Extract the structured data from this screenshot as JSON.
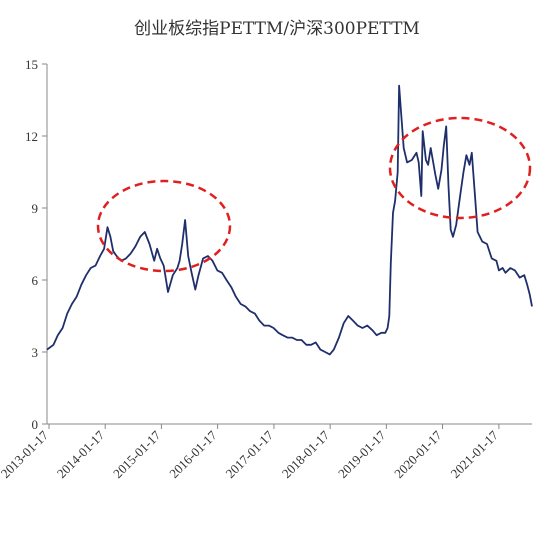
{
  "chart_data": {
    "type": "line",
    "title": "创业板综指PETTM/沪深300PETTM",
    "xlabel": "",
    "ylabel": "",
    "ylim": [
      0,
      15
    ],
    "yticks": [
      0,
      3,
      6,
      9,
      12,
      15
    ],
    "xlim": [
      "2013-01-04",
      "2021-08-20"
    ],
    "xticks": [
      "2013-01-17",
      "2014-01-17",
      "2015-01-17",
      "2016-01-17",
      "2017-01-17",
      "2018-01-17",
      "2019-01-17",
      "2020-01-17",
      "2021-01-17"
    ],
    "grid": false,
    "legend": "none",
    "series_color": "#1f2f6b",
    "annotation_color": "#e02020",
    "series": [
      {
        "x": [
          "2013-01-04",
          "2013-02-15",
          "2013-03-15",
          "2013-04-15",
          "2013-05-15",
          "2013-06-15",
          "2013-07-15",
          "2013-08-15",
          "2013-09-15",
          "2013-10-15",
          "2013-11-15",
          "2013-12-15",
          "2014-01-10",
          "2014-02-01",
          "2014-02-20",
          "2014-03-10",
          "2014-04-01",
          "2014-05-01",
          "2014-06-01",
          "2014-07-01",
          "2014-08-01",
          "2014-09-01",
          "2014-10-01",
          "2014-11-01",
          "2014-12-01",
          "2014-12-20",
          "2015-01-10",
          "2015-02-01",
          "2015-03-01",
          "2015-04-01",
          "2015-05-01",
          "2015-05-15",
          "2015-06-01",
          "2015-06-20",
          "2015-07-10",
          "2015-08-01",
          "2015-08-25",
          "2015-09-15",
          "2015-10-15",
          "2015-11-15",
          "2015-12-15",
          "2016-01-15",
          "2016-02-15",
          "2016-03-15",
          "2016-04-15",
          "2016-05-15",
          "2016-06-15",
          "2016-07-15",
          "2016-08-15",
          "2016-09-15",
          "2016-10-15",
          "2016-11-15",
          "2016-12-15",
          "2017-01-15",
          "2017-02-15",
          "2017-03-15",
          "2017-04-15",
          "2017-05-15",
          "2017-06-15",
          "2017-07-15",
          "2017-08-15",
          "2017-09-15",
          "2017-10-15",
          "2017-11-15",
          "2017-12-15",
          "2018-01-15",
          "2018-02-10",
          "2018-03-15",
          "2018-04-15",
          "2018-05-15",
          "2018-06-15",
          "2018-07-15",
          "2018-08-15",
          "2018-09-15",
          "2018-10-20",
          "2018-11-15",
          "2018-12-15",
          "2019-01-10",
          "2019-01-25",
          "2019-02-05",
          "2019-02-15",
          "2019-03-01",
          "2019-03-15",
          "2019-04-01",
          "2019-04-10",
          "2019-04-25",
          "2019-05-10",
          "2019-06-01",
          "2019-07-01",
          "2019-08-01",
          "2019-08-15",
          "2019-09-01",
          "2019-09-10",
          "2019-10-01",
          "2019-10-15",
          "2019-11-01",
          "2019-12-01",
          "2019-12-20",
          "2020-01-10",
          "2020-01-25",
          "2020-02-10",
          "2020-02-25",
          "2020-03-10",
          "2020-03-25",
          "2020-04-15",
          "2020-05-10",
          "2020-06-01",
          "2020-06-20",
          "2020-07-10",
          "2020-07-25",
          "2020-08-15",
          "2020-09-01",
          "2020-10-01",
          "2020-11-01",
          "2020-12-01",
          "2021-01-01",
          "2021-01-17",
          "2021-02-10",
          "2021-03-01",
          "2021-04-01",
          "2021-05-01",
          "2021-06-01",
          "2021-07-01",
          "2021-07-20",
          "2021-08-05",
          "2021-08-20"
        ],
        "values": [
          3.1,
          3.3,
          3.7,
          4.0,
          4.6,
          5.0,
          5.3,
          5.8,
          6.2,
          6.5,
          6.6,
          7.0,
          7.3,
          8.2,
          7.8,
          7.2,
          7.0,
          6.8,
          6.9,
          7.1,
          7.4,
          7.8,
          8.0,
          7.5,
          6.8,
          7.3,
          6.9,
          6.6,
          5.5,
          6.2,
          6.5,
          6.8,
          7.5,
          8.5,
          7.0,
          6.3,
          5.6,
          6.2,
          6.9,
          7.0,
          6.8,
          6.4,
          6.3,
          6.0,
          5.7,
          5.3,
          5.0,
          4.9,
          4.7,
          4.6,
          4.3,
          4.1,
          4.1,
          4.0,
          3.8,
          3.7,
          3.6,
          3.6,
          3.5,
          3.5,
          3.3,
          3.3,
          3.4,
          3.1,
          3.0,
          2.9,
          3.1,
          3.6,
          4.2,
          4.5,
          4.3,
          4.1,
          4.0,
          4.1,
          3.9,
          3.7,
          3.8,
          3.8,
          4.0,
          4.5,
          6.7,
          8.8,
          9.3,
          10.5,
          14.1,
          12.8,
          11.5,
          10.9,
          11.0,
          11.3,
          10.9,
          9.5,
          12.2,
          11.0,
          10.8,
          11.5,
          10.4,
          9.8,
          10.6,
          11.6,
          12.4,
          9.9,
          8.1,
          7.8,
          8.3,
          9.5,
          10.5,
          11.2,
          10.8,
          11.3,
          9.5,
          8.0,
          7.6,
          7.5,
          6.9,
          6.8,
          6.4,
          6.5,
          6.3,
          6.5,
          6.4,
          6.1,
          6.2,
          5.8,
          5.4,
          4.9
        ]
      }
    ]
  }
}
